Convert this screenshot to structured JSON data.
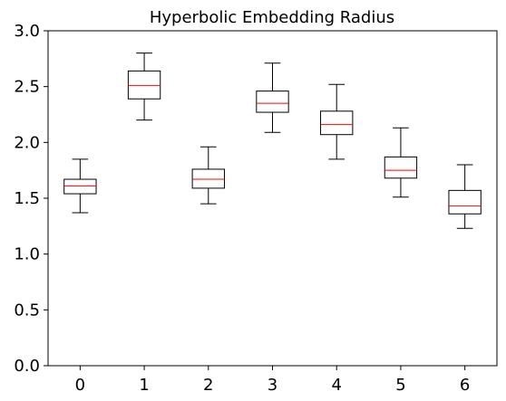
{
  "chart_data": {
    "type": "box",
    "title": "Hyperbolic Embedding Radius",
    "xlabel": "",
    "ylabel": "",
    "categories": [
      "0",
      "1",
      "2",
      "3",
      "4",
      "5",
      "6"
    ],
    "ylim": [
      0.0,
      3.0
    ],
    "yticks": [
      "0.0",
      "0.5",
      "1.0",
      "1.5",
      "2.0",
      "2.5",
      "3.0"
    ],
    "grid": false,
    "boxes": [
      {
        "whisker_low": 1.37,
        "q1": 1.54,
        "median": 1.61,
        "q3": 1.67,
        "whisker_high": 1.85
      },
      {
        "whisker_low": 2.2,
        "q1": 2.39,
        "median": 2.51,
        "q3": 2.64,
        "whisker_high": 2.8
      },
      {
        "whisker_low": 1.45,
        "q1": 1.59,
        "median": 1.67,
        "q3": 1.76,
        "whisker_high": 1.96
      },
      {
        "whisker_low": 2.09,
        "q1": 2.27,
        "median": 2.35,
        "q3": 2.46,
        "whisker_high": 2.71
      },
      {
        "whisker_low": 1.85,
        "q1": 2.07,
        "median": 2.16,
        "q3": 2.28,
        "whisker_high": 2.52
      },
      {
        "whisker_low": 1.51,
        "q1": 1.68,
        "median": 1.75,
        "q3": 1.87,
        "whisker_high": 2.13
      },
      {
        "whisker_low": 1.23,
        "q1": 1.36,
        "median": 1.43,
        "q3": 1.57,
        "whisker_high": 1.8
      }
    ],
    "colors": {
      "box": "#000000",
      "median": "#ff0000",
      "axis": "#000000"
    }
  }
}
